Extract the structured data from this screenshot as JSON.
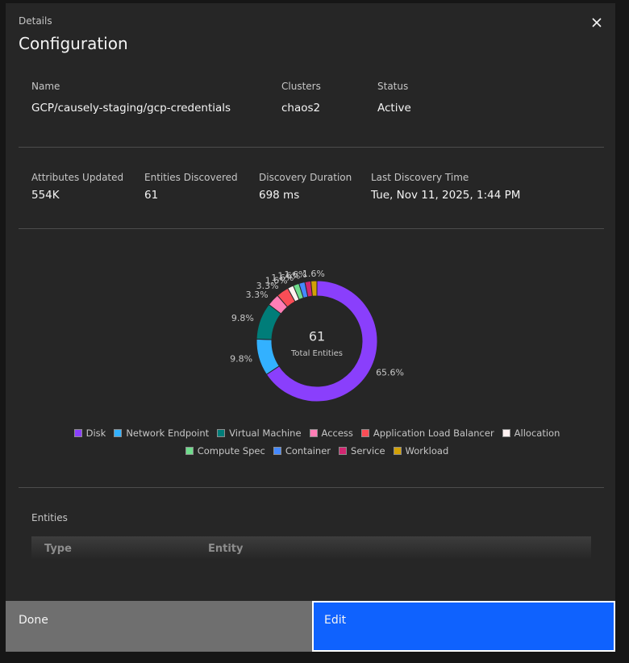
{
  "header": {
    "subtitle": "Details",
    "title": "Configuration"
  },
  "fields": [
    {
      "label": "Name",
      "value": "GCP/causely-staging/gcp-credentials"
    },
    {
      "label": "Clusters",
      "value": "chaos2"
    },
    {
      "label": "Status",
      "value": "Active"
    }
  ],
  "stats": [
    {
      "label": "Attributes Updated",
      "value": "554K"
    },
    {
      "label": "Entities Discovered",
      "value": "61"
    },
    {
      "label": "Discovery Duration",
      "value": "698 ms"
    },
    {
      "label": "Last Discovery Time",
      "value": "Tue, Nov 11, 2025, 1:44 PM"
    }
  ],
  "chart_data": {
    "type": "pie",
    "total": 61,
    "total_label": "Total Entities",
    "categories": [
      "Disk",
      "Network Endpoint",
      "Virtual Machine",
      "Access",
      "Application Load Balancer",
      "Allocation",
      "Compute Spec",
      "Container",
      "Service",
      "Workload"
    ],
    "colors": [
      "#8a3ffc",
      "#33b1ff",
      "#007d79",
      "#ff7eb6",
      "#fa4d56",
      "#fff1f1",
      "#6fdc8c",
      "#4589ff",
      "#d12771",
      "#d2a106"
    ],
    "values": [
      65.6,
      9.8,
      9.8,
      3.3,
      3.3,
      1.6,
      1.6,
      1.6,
      1.6,
      1.6
    ],
    "value_labels": [
      "65.6%",
      "9.8%",
      "9.8%",
      "3.3%",
      "3.3%",
      "1.6%",
      "1.6%",
      "1.6%",
      "1.6%",
      "1.6%"
    ]
  },
  "entities": {
    "title": "Entities",
    "columns": [
      "Type",
      "Entity"
    ]
  },
  "buttons": {
    "done": "Done",
    "edit": "Edit"
  }
}
